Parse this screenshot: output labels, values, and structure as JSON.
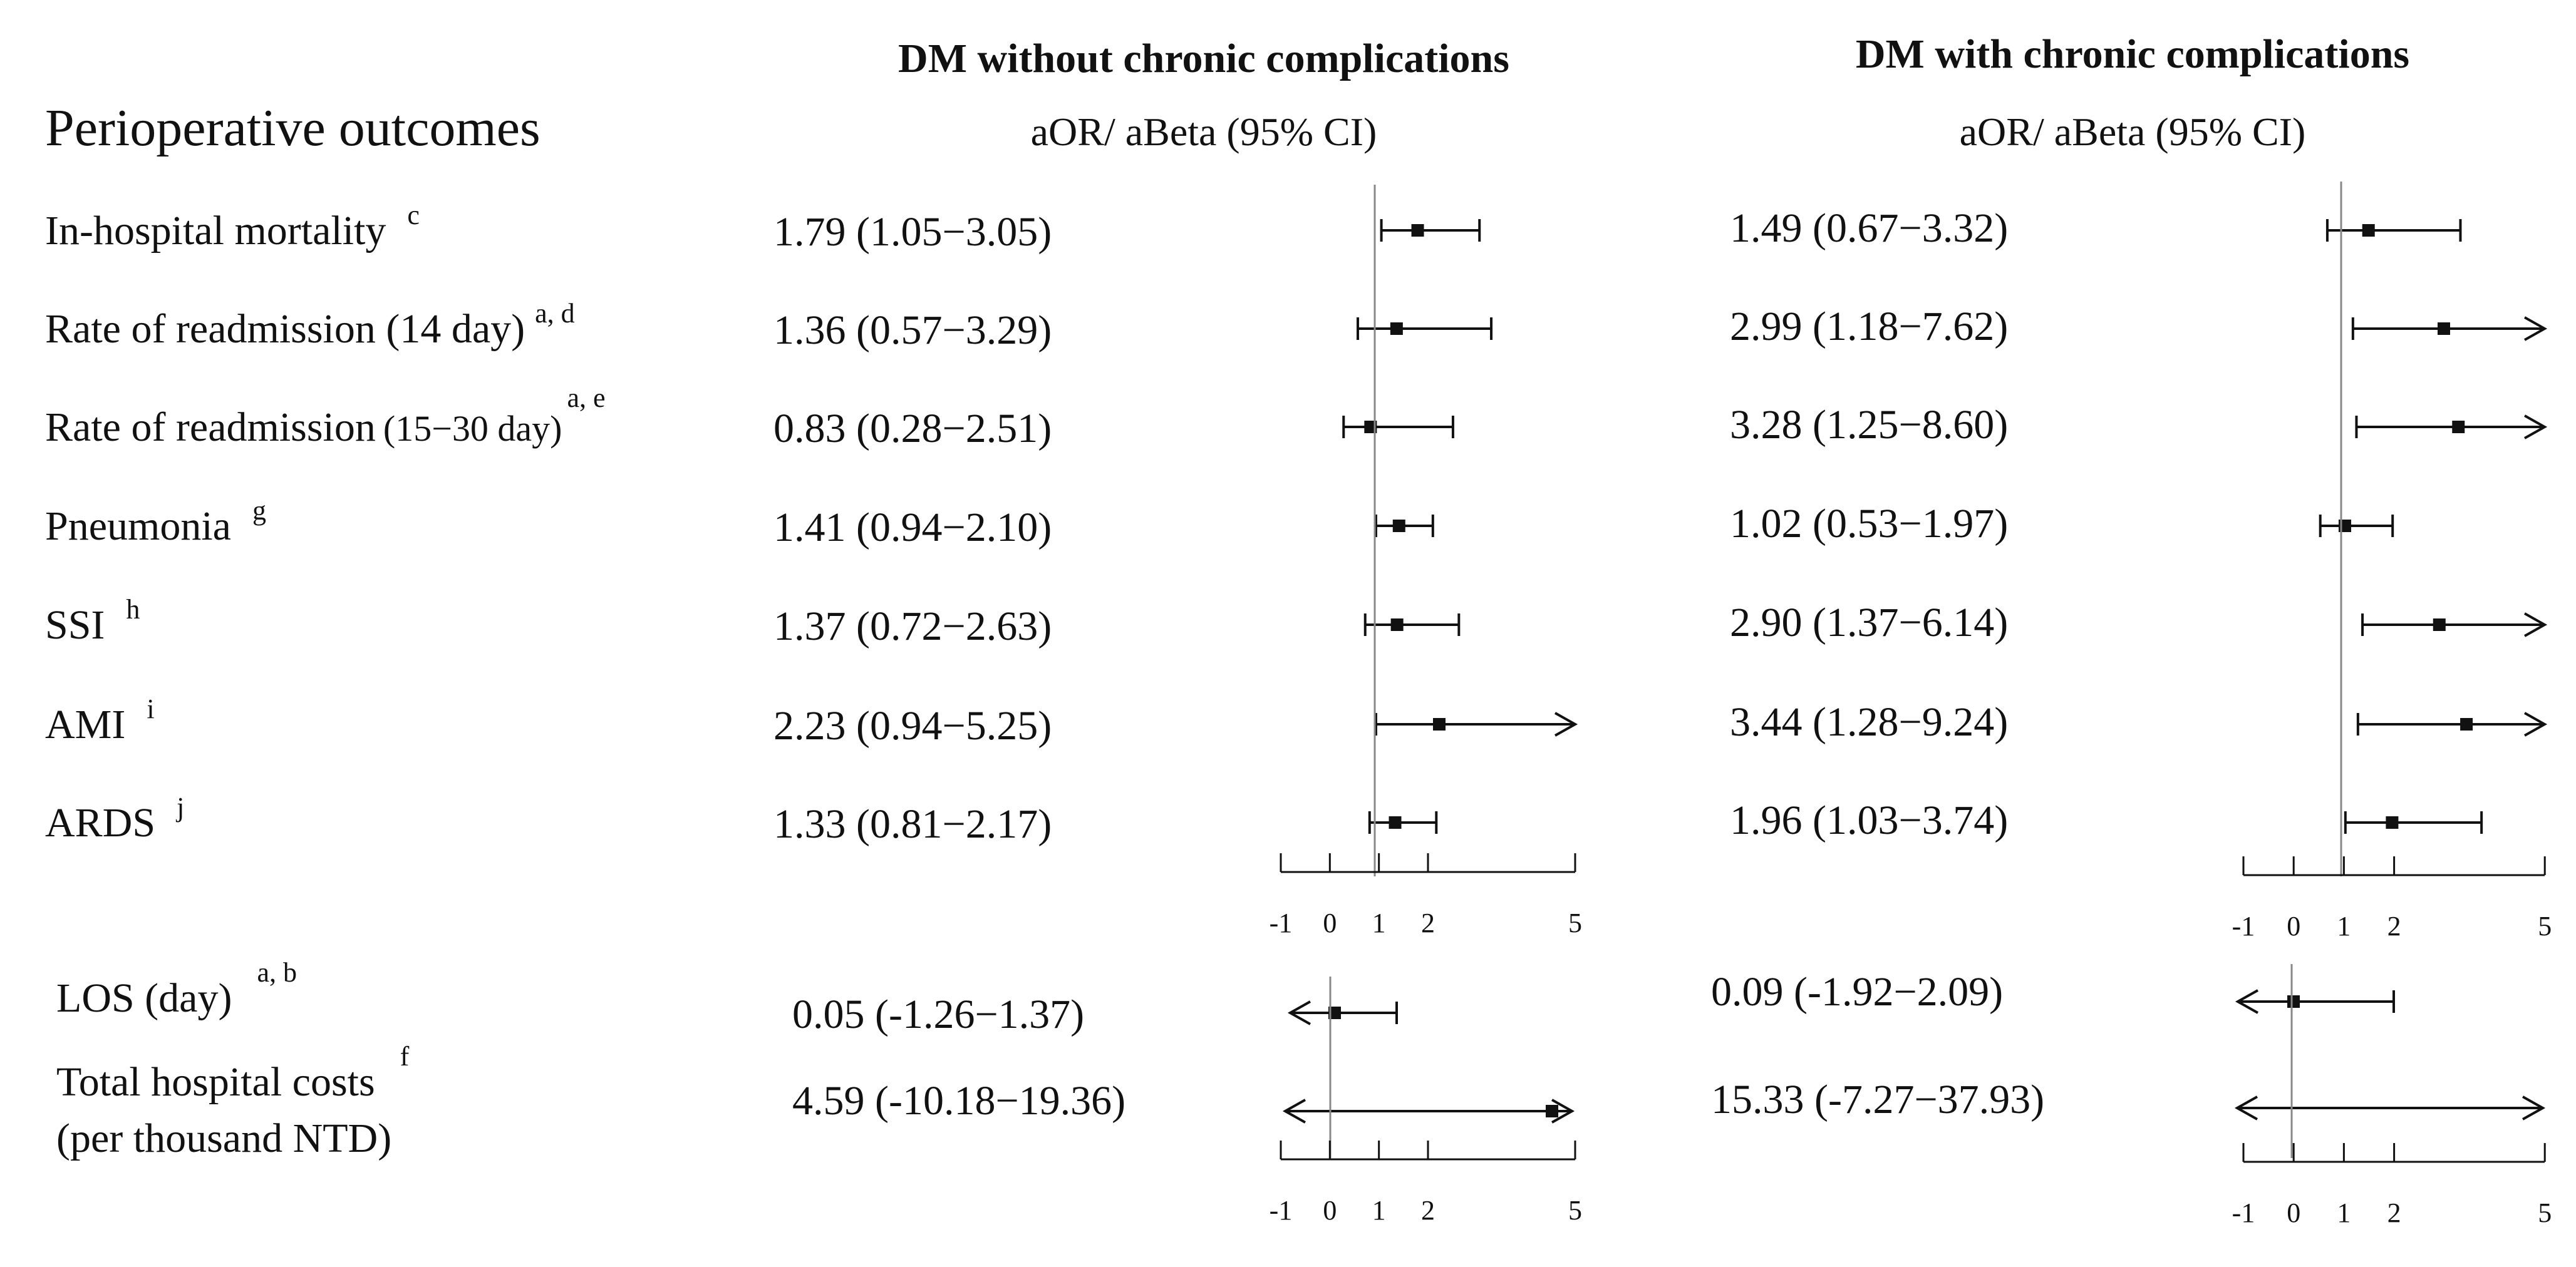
{
  "chart_data": {
    "type": "forest",
    "headers": {
      "left_group": "DM without chronic complications",
      "right_group": "DM with chronic complications",
      "outcome_column": "Perioperative outcomes",
      "estimate_label_left": "aOR/ aBeta (95% CI)",
      "estimate_label_right": "aOR/ aBeta (95% CI)"
    },
    "axis_ticks": [
      -1,
      0,
      1,
      2,
      5
    ],
    "x_range": [
      -1,
      5
    ],
    "reference_line": 1,
    "reference_line_lower": 0,
    "rows": [
      {
        "label": "In-hospital mortality",
        "sup": "c",
        "left": {
          "text": "1.79 (1.05−3.05)",
          "est": 1.79,
          "lo": 1.05,
          "hi": 3.05
        },
        "right": {
          "text": "1.49 (0.67−3.32)",
          "est": 1.49,
          "lo": 0.67,
          "hi": 3.32
        }
      },
      {
        "label": "Rate of readmission (14 day)",
        "sup": "a, d",
        "left": {
          "text": "1.36 (0.57−3.29)",
          "est": 1.36,
          "lo": 0.57,
          "hi": 3.29
        },
        "right": {
          "text": "2.99 (1.18−7.62)",
          "est": 2.99,
          "lo": 1.18,
          "hi": 7.62
        }
      },
      {
        "label": "Rate of readmission",
        "label_small": "(15−30 day)",
        "sup": "a, e",
        "left": {
          "text": "0.83 (0.28−2.51)",
          "est": 0.83,
          "lo": 0.28,
          "hi": 2.51
        },
        "right": {
          "text": "3.28 (1.25−8.60)",
          "est": 3.28,
          "lo": 1.25,
          "hi": 8.6
        }
      },
      {
        "label": "Pneumonia",
        "sup": "g",
        "left": {
          "text": "1.41 (0.94−2.10)",
          "est": 1.41,
          "lo": 0.94,
          "hi": 2.1
        },
        "right": {
          "text": "1.02 (0.53−1.97)",
          "est": 1.02,
          "lo": 0.53,
          "hi": 1.97
        }
      },
      {
        "label": "SSI",
        "sup": "h",
        "left": {
          "text": "1.37 (0.72−2.63)",
          "est": 1.37,
          "lo": 0.72,
          "hi": 2.63
        },
        "right": {
          "text": "2.90 (1.37−6.14)",
          "est": 2.9,
          "lo": 1.37,
          "hi": 6.14
        }
      },
      {
        "label": "AMI",
        "sup": "i",
        "left": {
          "text": "2.23 (0.94−5.25)",
          "est": 2.23,
          "lo": 0.94,
          "hi": 5.25
        },
        "right": {
          "text": "3.44 (1.28−9.24)",
          "est": 3.44,
          "lo": 1.28,
          "hi": 9.24
        }
      },
      {
        "label": "ARDS",
        "sup": "j",
        "left": {
          "text": "1.33 (0.81−2.17)",
          "est": 1.33,
          "lo": 0.81,
          "hi": 2.17
        },
        "right": {
          "text": "1.96 (1.03−3.74)",
          "est": 1.96,
          "lo": 1.03,
          "hi": 3.74
        }
      }
    ],
    "continuous_rows": [
      {
        "label": "LOS (day)",
        "sup": "a, b",
        "left": {
          "text": "0.05 (-1.26−1.37)",
          "est": 0.05,
          "lo": -1.26,
          "hi": 1.37
        },
        "right": {
          "text": "0.09 (-1.92−2.09)",
          "est": 0.09,
          "lo": -1.92,
          "hi": 2.09
        }
      },
      {
        "label": "Total hospital costs",
        "label_line2": "(per thousand NTD)",
        "sup": "f",
        "left": {
          "text": "4.59 (-10.18−19.36)",
          "est": 4.59,
          "lo": -10.18,
          "hi": 19.36
        },
        "right": {
          "text": "15.33 (-7.27−37.93)",
          "est": 15.33,
          "lo": -7.27,
          "hi": 37.93
        }
      }
    ]
  }
}
